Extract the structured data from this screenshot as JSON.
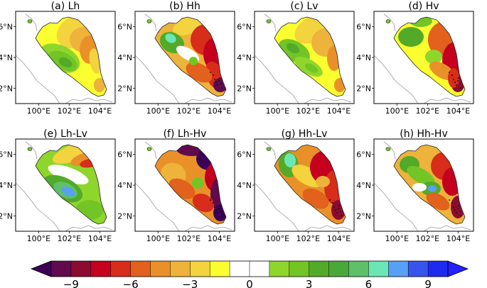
{
  "panels": [
    {
      "id": "a",
      "title": "(a) Lh",
      "pattern": "lh"
    },
    {
      "id": "b",
      "title": "(b) Hh",
      "pattern": "hh"
    },
    {
      "id": "c",
      "title": "(c) Lv",
      "pattern": "lv"
    },
    {
      "id": "d",
      "title": "(d) Hv",
      "pattern": "hv"
    },
    {
      "id": "e",
      "title": "(e) Lh-Lv",
      "pattern": "lh_lv"
    },
    {
      "id": "f",
      "title": "(f) Lh-Hv",
      "pattern": "lh_hv"
    },
    {
      "id": "g",
      "title": "(g) Hh-Lv",
      "pattern": "hh_lv"
    },
    {
      "id": "h",
      "title": "(h) Hh-Hv",
      "pattern": "hh_hv"
    }
  ],
  "axes": {
    "lat_ticks": [
      "6°N",
      "4°N",
      "2°N"
    ],
    "lon_ticks": [
      "100°E",
      "102°E",
      "104°E"
    ]
  },
  "colorbar": {
    "tick_labels": [
      "−9",
      "−6",
      "−3",
      "0",
      "3",
      "6",
      "9"
    ],
    "colors": [
      "#3d0057",
      "#620a4e",
      "#8d0b31",
      "#c4001e",
      "#d72d1a",
      "#e1611d",
      "#e99128",
      "#edb33a",
      "#f3d33e",
      "#fbff30",
      "#ffffff",
      "#ffffff",
      "#8fd62c",
      "#72c525",
      "#53aa29",
      "#4aa83a",
      "#5fc06a",
      "#6ce6b4",
      "#58a0f4",
      "#3755ec",
      "#1f2af0",
      "#2321ff"
    ]
  }
}
